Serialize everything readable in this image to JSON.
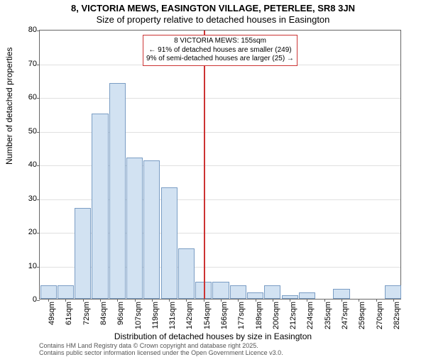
{
  "title": {
    "line1": "8, VICTORIA MEWS, EASINGTON VILLAGE, PETERLEE, SR8 3JN",
    "line2": "Size of property relative to detached houses in Easington",
    "fontsize": 13
  },
  "chart": {
    "type": "bar",
    "plot_bg": "#ffffff",
    "grid_color": "#e0e0e0",
    "border_color": "#666666",
    "bar_fill": "#d2e2f2",
    "bar_stroke": "#7a9dc4",
    "bar_width_ratio": 0.95,
    "ylabel": "Number of detached properties",
    "xlabel": "Distribution of detached houses by size in Easington",
    "label_fontsize": 12,
    "tick_fontsize": 11,
    "ylim": [
      0,
      80
    ],
    "ytick_step": 10,
    "x_categories": [
      "49sqm",
      "61sqm",
      "72sqm",
      "84sqm",
      "96sqm",
      "107sqm",
      "119sqm",
      "131sqm",
      "142sqm",
      "154sqm",
      "166sqm",
      "177sqm",
      "189sqm",
      "200sqm",
      "212sqm",
      "224sqm",
      "235sqm",
      "247sqm",
      "259sqm",
      "270sqm",
      "282sqm"
    ],
    "values": [
      4,
      4,
      27,
      55,
      64,
      42,
      41,
      33,
      15,
      5,
      5,
      4,
      2,
      4,
      1,
      2,
      0,
      3,
      0,
      0,
      4
    ],
    "reference_line": {
      "x_position_ratio": 0.452,
      "color": "#cc3333",
      "width": 2
    },
    "annotation": {
      "line1": "8 VICTORIA MEWS: 155sqm",
      "line2": "← 91% of detached houses are smaller (249)",
      "line3": "9% of semi-detached houses are larger (25) →",
      "border_color": "#cc3333",
      "fontsize": 10,
      "top_offset": 6
    }
  },
  "footer": {
    "line1": "Contains HM Land Registry data © Crown copyright and database right 2025.",
    "line2": "Contains public sector information licensed under the Open Government Licence v3.0.",
    "fontsize": 9,
    "color": "#555555"
  }
}
